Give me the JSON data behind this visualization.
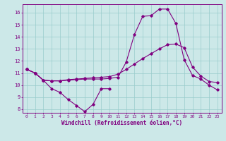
{
  "xlabel": "Windchill (Refroidissement éolien,°C)",
  "bg_color": "#cce8e8",
  "line_color": "#800080",
  "grid_color": "#99cccc",
  "xticks": [
    0,
    1,
    2,
    3,
    4,
    5,
    6,
    7,
    8,
    9,
    10,
    11,
    12,
    13,
    14,
    15,
    16,
    17,
    18,
    19,
    20,
    21,
    22,
    23
  ],
  "yticks": [
    8,
    9,
    10,
    11,
    12,
    13,
    14,
    15,
    16
  ],
  "x_main": [
    0,
    1,
    2,
    3,
    4,
    5,
    6,
    7,
    8,
    9,
    10,
    11,
    12,
    13,
    14,
    15,
    16,
    17,
    18,
    19,
    20,
    21,
    22,
    23
  ],
  "line_peak": [
    11.3,
    11.0,
    10.4,
    10.35,
    10.35,
    10.4,
    10.45,
    10.5,
    10.5,
    10.5,
    10.55,
    10.65,
    11.9,
    14.2,
    15.7,
    15.75,
    16.3,
    16.3,
    15.1,
    12.1,
    10.8,
    10.5,
    10.0,
    9.6
  ],
  "line_trend": [
    11.3,
    11.0,
    10.4,
    10.35,
    10.35,
    10.45,
    10.5,
    10.55,
    10.6,
    10.65,
    10.7,
    10.9,
    11.3,
    11.75,
    12.2,
    12.6,
    13.0,
    13.35,
    13.4,
    13.1,
    11.5,
    10.75,
    10.3,
    10.2
  ],
  "line_dip_x": [
    0,
    1,
    2,
    3,
    4,
    5,
    6,
    7,
    8,
    9,
    10
  ],
  "line_dip_y": [
    11.3,
    11.0,
    10.4,
    9.7,
    9.4,
    8.8,
    8.3,
    7.8,
    8.4,
    9.7,
    9.7
  ],
  "ylim_min": 7.7,
  "ylim_max": 16.7
}
